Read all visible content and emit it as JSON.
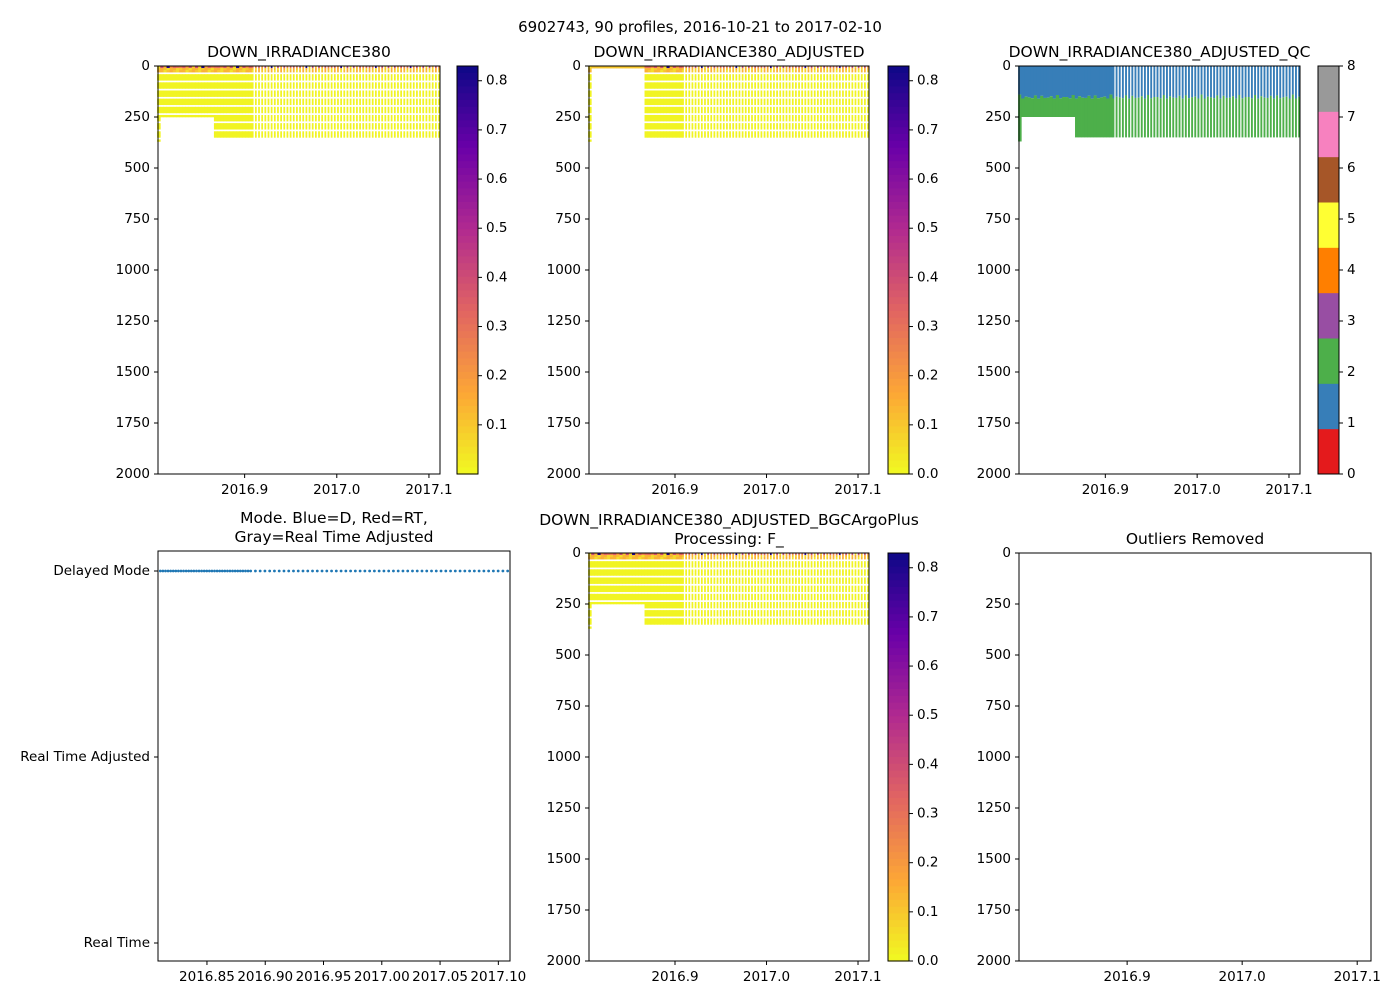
{
  "figure": {
    "suptitle": "6902743, 90 profiles, 2016-10-21 to 2017-02-10"
  },
  "colors": {
    "mode_marker": "#1f77b4",
    "plasma_r": [
      "#f0f921",
      "#fca636",
      "#e16462",
      "#b12a90",
      "#6a00a8",
      "#0d0887"
    ],
    "qc": [
      "#e41a1c",
      "#377eb8",
      "#4daf4a",
      "#984ea3",
      "#ff7f00",
      "#ffff33",
      "#a65628",
      "#f781bf",
      "#999999"
    ]
  },
  "chart_data": [
    {
      "id": "p1",
      "type": "heatmap",
      "title": "DOWN_IRRADIANCE380",
      "xlim": [
        2016.806,
        2017.112
      ],
      "ylim": [
        2000,
        0
      ],
      "xticks": [
        "2016.9",
        "2017.0",
        "2017.1"
      ],
      "yticks": [
        "0",
        "250",
        "500",
        "750",
        "1000",
        "1250",
        "1500",
        "1750",
        "2000"
      ],
      "colorbar": {
        "range": [
          0.0,
          0.83
        ],
        "ticks": [
          "0.1",
          "0.2",
          "0.3",
          "0.4",
          "0.5",
          "0.6",
          "0.7",
          "0.8"
        ]
      },
      "n_profiles": 90,
      "x_start": 2016.805,
      "x_end": 2017.11,
      "profile_max_depth_m": {
        "first": 370,
        "gap_range": [
          2016.808,
          2016.865
        ],
        "gap": 250,
        "rest": 350
      },
      "value_summary": "near-surface values up to ~0.8; mostly ~0.0 below 40 m"
    },
    {
      "id": "p2",
      "type": "heatmap",
      "title": "DOWN_IRRADIANCE380_ADJUSTED",
      "xlim": [
        2016.806,
        2017.112
      ],
      "ylim": [
        2000,
        0
      ],
      "xticks": [
        "2016.9",
        "2017.0",
        "2017.1"
      ],
      "yticks": [
        "0",
        "250",
        "500",
        "750",
        "1000",
        "1250",
        "1500",
        "1750",
        "2000"
      ],
      "colorbar": {
        "range": [
          0.0,
          0.83
        ],
        "ticks": [
          "0.0",
          "0.1",
          "0.2",
          "0.3",
          "0.4",
          "0.5",
          "0.6",
          "0.7",
          "0.8"
        ]
      },
      "n_profiles": 90,
      "x_start": 2016.805,
      "x_end": 2017.11,
      "profile_max_depth_m": {
        "first": 370,
        "gap_range": [
          2016.808,
          2016.865
        ],
        "gap": 0,
        "rest": 350
      }
    },
    {
      "id": "p3",
      "type": "heatmap",
      "title": "DOWN_IRRADIANCE380_ADJUSTED_QC",
      "xlim": [
        2016.806,
        2017.112
      ],
      "ylim": [
        2000,
        0
      ],
      "xticks": [
        "2016.9",
        "2017.0",
        "2017.1"
      ],
      "yticks": [
        "0",
        "250",
        "500",
        "750",
        "1000",
        "1250",
        "1500",
        "1750",
        "2000"
      ],
      "colorbar": {
        "range": [
          0,
          8
        ],
        "ticks": [
          "0",
          "1",
          "2",
          "3",
          "4",
          "5",
          "6",
          "7",
          "8"
        ]
      },
      "qc_layers": [
        {
          "flag": 1,
          "from_depth": 0,
          "to_depth_approx": 150
        },
        {
          "flag": 2,
          "from_depth_approx": 150,
          "to_depth": 350
        }
      ]
    },
    {
      "id": "p4",
      "type": "scatter",
      "title_lines": [
        "Mode. Blue=D, Red=RT,",
        "Gray=Real Time Adjusted"
      ],
      "xlim": [
        2016.808,
        2017.11
      ],
      "xticks": [
        "2016.85",
        "2016.90",
        "2016.95",
        "2017.00",
        "2017.05",
        "2017.10"
      ],
      "ycategories": [
        "Delayed Mode",
        "Real Time Adjusted",
        "Real Time"
      ],
      "series": [
        {
          "name": "Delayed Mode",
          "category": "Delayed Mode",
          "count": 90,
          "x_range": [
            2016.81,
            2017.108
          ]
        }
      ]
    },
    {
      "id": "p5",
      "type": "heatmap",
      "title_lines": [
        "DOWN_IRRADIANCE380_ADJUSTED_BGCArgoPlus",
        "Processing: F_"
      ],
      "xlim": [
        2016.806,
        2017.112
      ],
      "ylim": [
        2000,
        0
      ],
      "xticks": [
        "2016.9",
        "2017.0",
        "2017.1"
      ],
      "yticks": [
        "0",
        "250",
        "500",
        "750",
        "1000",
        "1250",
        "1500",
        "1750",
        "2000"
      ],
      "colorbar": {
        "range": [
          0.0,
          0.83
        ],
        "ticks": [
          "0.0",
          "0.1",
          "0.2",
          "0.3",
          "0.4",
          "0.5",
          "0.6",
          "0.7",
          "0.8"
        ]
      },
      "n_profiles": 90,
      "x_start": 2016.805,
      "x_end": 2017.11,
      "profile_max_depth_m": {
        "first": 370,
        "gap_range": [
          2016.808,
          2016.865
        ],
        "gap": 250,
        "rest": 350
      }
    },
    {
      "id": "p6",
      "type": "scatter",
      "title": "Outliers Removed",
      "xlim": [
        2016.806,
        2017.112
      ],
      "ylim": [
        2000,
        0
      ],
      "xticks": [
        "2016.9",
        "2017.0",
        "2017.1"
      ],
      "yticks": [
        "0",
        "250",
        "500",
        "750",
        "1000",
        "1250",
        "1500",
        "1750",
        "2000"
      ],
      "series": []
    }
  ]
}
